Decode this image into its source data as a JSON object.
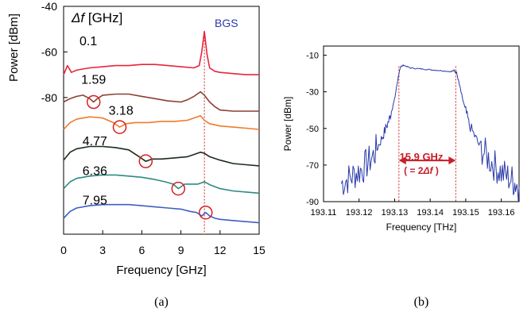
{
  "chart_data": [
    {
      "panel_label": "(a)",
      "type": "line",
      "title": "",
      "xlabel": "Frequency [GHz]",
      "ylabel": "Power [dBm]",
      "xlim": [
        0,
        15
      ],
      "ylim_labeled": [
        -80,
        -40
      ],
      "xticks": [
        "0",
        "3",
        "6",
        "9",
        "12",
        "15"
      ],
      "yticks": [
        "-40",
        "-60",
        "-80"
      ],
      "legend_title": "Δf [GHz]",
      "annotation": "BGS",
      "bgs_marker_x": 10.8,
      "series": [
        {
          "name": "0.1",
          "color": "#e8243c",
          "x": [
            0,
            0.3,
            0.6,
            1.0,
            1.5,
            2,
            3,
            4,
            5,
            6,
            7,
            8,
            9,
            10,
            10.4,
            10.6,
            10.8,
            11.0,
            11.2,
            11.6,
            12,
            13,
            14,
            15
          ],
          "y": [
            -70,
            -66,
            -69,
            -68,
            -67.5,
            -67,
            -66.5,
            -66,
            -66,
            -65.5,
            -65.5,
            -66,
            -66.5,
            -67,
            -66,
            -60,
            -51,
            -61,
            -67,
            -68.5,
            -69,
            -69.5,
            -70,
            -70
          ]
        },
        {
          "name": "1.59",
          "color": "#8c3f32",
          "x": [
            0,
            0.5,
            1.0,
            1.5,
            2.0,
            2.3,
            2.6,
            3,
            4,
            5,
            6,
            7,
            8,
            9,
            9.5,
            10,
            10.5,
            10.8,
            11.2,
            11.6,
            12,
            13,
            14,
            15
          ],
          "y": [
            -82,
            -80.5,
            -79.5,
            -79,
            -80.5,
            -82,
            -80.5,
            -79,
            -78.5,
            -78.5,
            -79.5,
            -80.5,
            -81.5,
            -82,
            -81,
            -79.5,
            -77.5,
            -79,
            -82,
            -84,
            -85.5,
            -86,
            -86,
            -86
          ]
        },
        {
          "name": "3.18",
          "color": "#f07a2a",
          "x": [
            0,
            0.5,
            1,
            2,
            3,
            3.8,
            4.3,
            4.8,
            5.5,
            6.5,
            7.5,
            8.5,
            9.5,
            10,
            10.5,
            10.8,
            11.2,
            12,
            13,
            14,
            15
          ],
          "y": [
            -94,
            -91,
            -89.5,
            -88.5,
            -89,
            -91,
            -93,
            -91.5,
            -91,
            -91,
            -90.5,
            -90.5,
            -90,
            -89,
            -88,
            -90,
            -91.5,
            -92.5,
            -93,
            -93.5,
            -94
          ]
        },
        {
          "name": "4.77",
          "color": "#1c2a1c",
          "x": [
            0,
            0.5,
            1,
            2,
            3,
            4,
            5,
            5.8,
            6.3,
            6.8,
            7.5,
            8.5,
            9.5,
            10,
            10.5,
            10.8,
            11.2,
            12,
            13,
            14,
            15
          ],
          "y": [
            -107.5,
            -104,
            -102.5,
            -101.5,
            -101.5,
            -102,
            -103,
            -106,
            -108,
            -107,
            -107,
            -106.5,
            -106,
            -105,
            -104,
            -104.5,
            -106,
            -107.5,
            -109,
            -109.5,
            -110
          ]
        },
        {
          "name": "6.36",
          "color": "#2c8a84",
          "x": [
            0,
            0.5,
            1,
            2,
            3,
            4,
            5,
            6,
            7,
            7.8,
            8.4,
            8.8,
            9.3,
            9.8,
            10.3,
            10.8,
            11.3,
            12,
            13,
            14,
            15
          ],
          "y": [
            -120,
            -117,
            -115.5,
            -114.5,
            -114,
            -114,
            -114.5,
            -115,
            -116,
            -117,
            -118,
            -120,
            -118,
            -118,
            -118,
            -117,
            -118.5,
            -120,
            -121,
            -121.5,
            -122
          ]
        },
        {
          "name": "7.95",
          "color": "#3d5fc4",
          "x": [
            0,
            0.5,
            1,
            2,
            3,
            4,
            5,
            6,
            7,
            8,
            9,
            9.7,
            10.2,
            10.6,
            10.9,
            11.2,
            11.6,
            12,
            13,
            14,
            15
          ],
          "y": [
            -133,
            -130,
            -128.5,
            -127.5,
            -127,
            -127,
            -127,
            -127.5,
            -128,
            -128.5,
            -129,
            -130,
            -130.5,
            -132,
            -130.5,
            -132,
            -133,
            -133.5,
            -134,
            -134.5,
            -135
          ]
        }
      ],
      "dips": [
        {
          "series": "1.59",
          "x": 2.3,
          "y": -82
        },
        {
          "series": "3.18",
          "x": 4.3,
          "y": -93
        },
        {
          "series": "4.77",
          "x": 6.3,
          "y": -108
        },
        {
          "series": "6.36",
          "x": 8.8,
          "y": -120
        },
        {
          "series": "7.95",
          "x": 10.9,
          "y": -130.5
        }
      ]
    },
    {
      "panel_label": "(b)",
      "type": "line",
      "title": "",
      "xlabel": "Frequency [THz]",
      "ylabel": "Power [dBm]",
      "xlim": [
        193.11,
        193.165
      ],
      "ylim": [
        -90,
        -5
      ],
      "xticks": [
        "193.11",
        "193.12",
        "193.13",
        "193.14",
        "193.15",
        "193.16"
      ],
      "yticks": [
        "-10",
        "-30",
        "-50",
        "-70",
        "-90"
      ],
      "grid": false,
      "color": "#2a3aa8",
      "series": [
        {
          "name": "",
          "x": [
            193.115,
            193.118,
            193.121,
            193.124,
            193.1265,
            193.1285,
            193.13,
            193.131,
            193.1318,
            193.1325,
            193.1345,
            193.1375,
            193.1405,
            193.1435,
            193.146,
            193.1468,
            193.1475,
            193.149,
            193.151,
            193.154,
            193.157,
            193.16,
            193.163,
            193.165
          ],
          "y": [
            -80,
            -76,
            -72,
            -65,
            -55,
            -45,
            -34,
            -22,
            -16,
            -15.5,
            -17,
            -17.5,
            -18,
            -18.5,
            -19,
            -18,
            -20,
            -33,
            -48,
            -60,
            -68,
            -74,
            -78,
            -82
          ]
        }
      ],
      "annotation_value": "15.9 GHz",
      "annotation_eq": "( = 2",
      "annotation_eq_tail": " )",
      "annotation_symbol": "Δf",
      "marker_lines_x": [
        193.1312,
        193.1472
      ]
    }
  ],
  "captions": {
    "a": "(a)",
    "b": "(b)"
  }
}
